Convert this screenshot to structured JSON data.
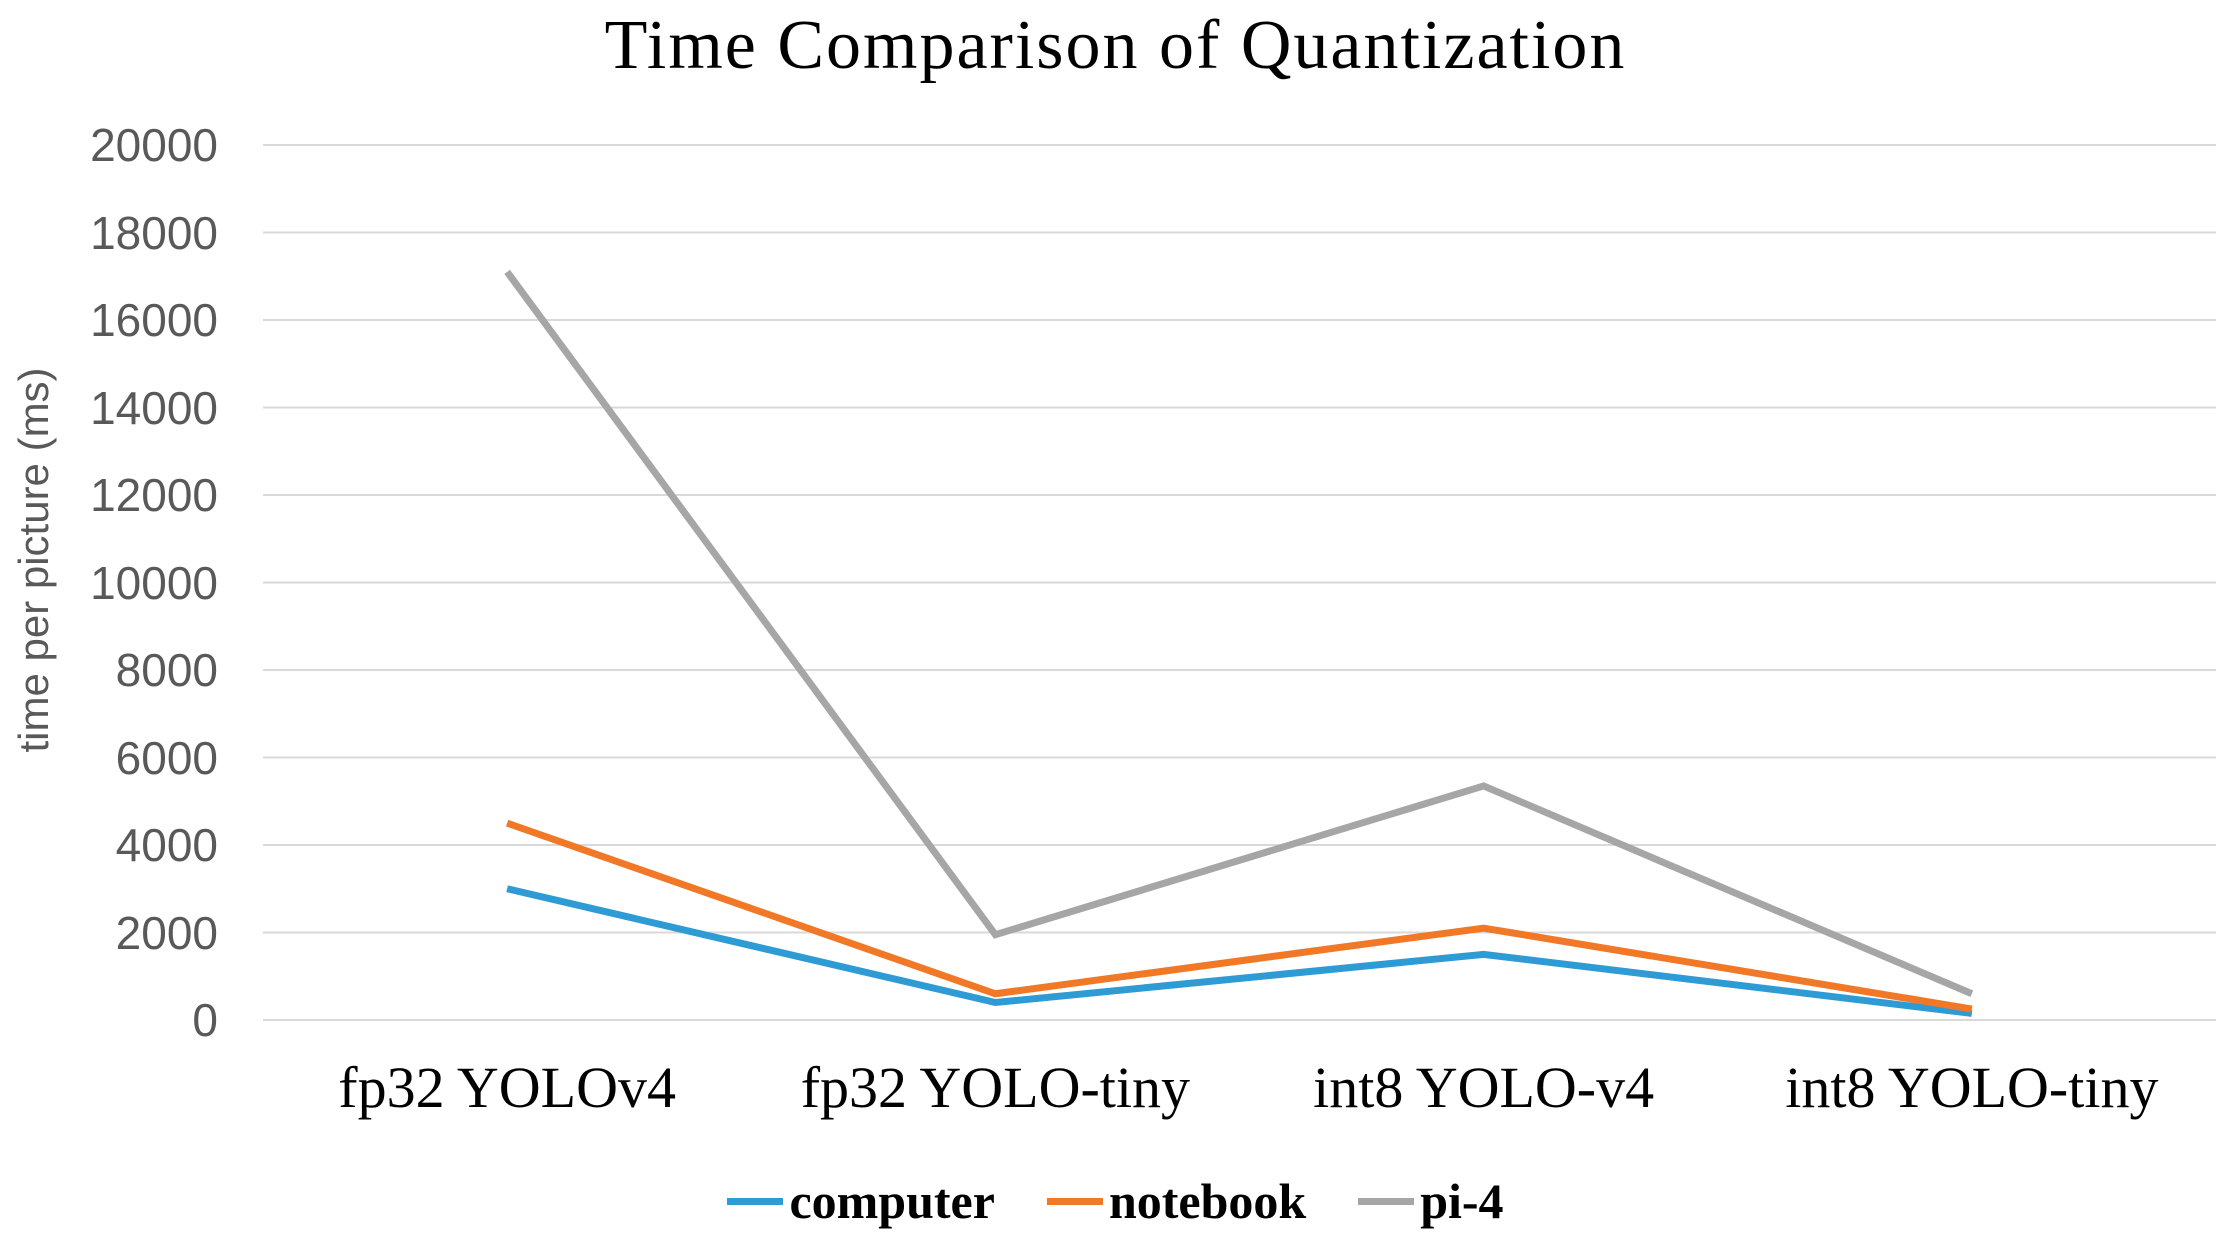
{
  "chart_data": {
    "type": "line",
    "title": "Time Comparison of Quantization",
    "ylabel": "time per picture (ms)",
    "xlabel": "",
    "categories": [
      "fp32 YOLOv4",
      "fp32 YOLO-tiny",
      "int8 YOLO-v4",
      "int8 YOLO-tiny"
    ],
    "series": [
      {
        "name": "computer",
        "color": "#2E9BD5",
        "values": [
          3000,
          400,
          1500,
          150
        ]
      },
      {
        "name": "notebook",
        "color": "#F07826",
        "values": [
          4500,
          600,
          2100,
          250
        ]
      },
      {
        "name": "pi-4",
        "color": "#A6A6A6",
        "values": [
          17100,
          1950,
          5350,
          600
        ]
      }
    ],
    "ylim": [
      0,
      20000
    ],
    "ytick_step": 2000,
    "grid": true,
    "legend_position": "bottom"
  },
  "colors": {
    "gridline": "#D9D9D9",
    "axis_text": "#595959",
    "title_text": "#000000",
    "background": "#FFFFFF"
  }
}
